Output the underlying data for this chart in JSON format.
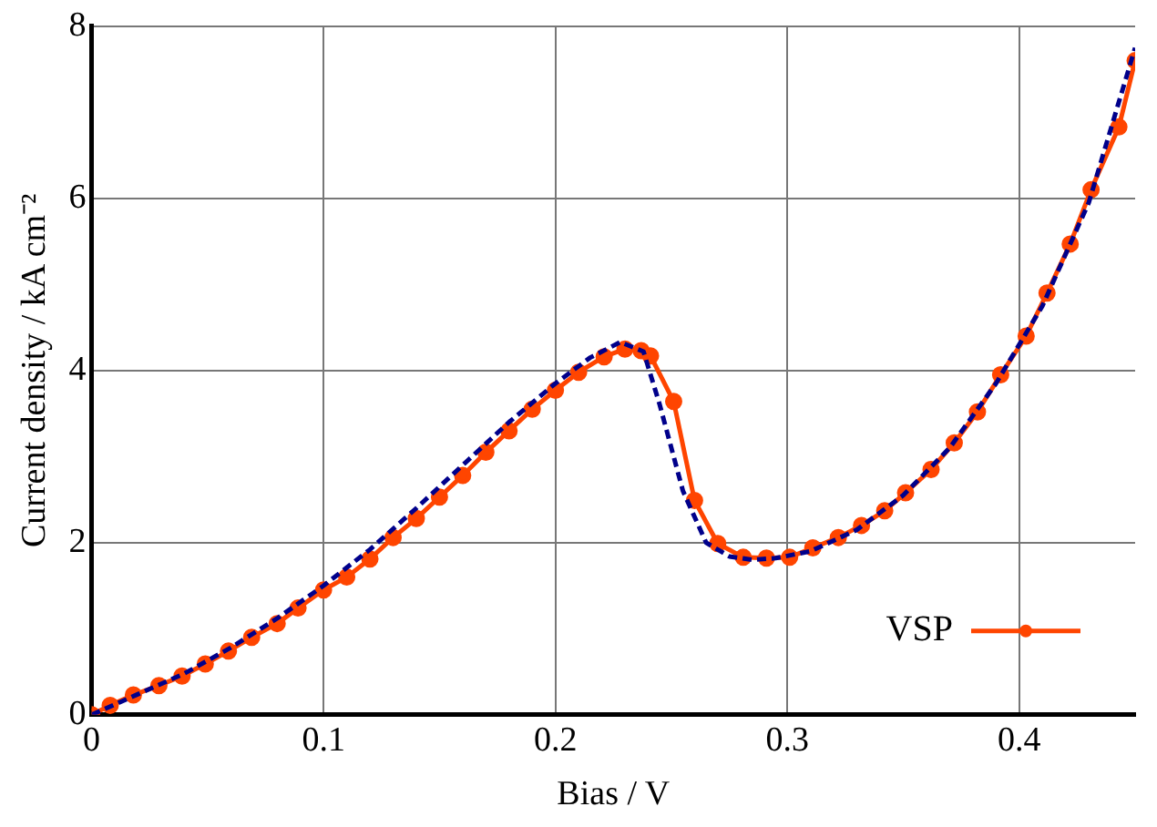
{
  "chart_data": {
    "type": "line",
    "xlabel": "Bias / V",
    "ylabel": "Current density / kA cm⁻²",
    "xlim": [
      0,
      0.45
    ],
    "ylim": [
      0,
      8
    ],
    "xticks": [
      0,
      0.1,
      0.2,
      0.3,
      0.4
    ],
    "yticks": [
      0,
      2,
      4,
      6,
      8
    ],
    "grid": true,
    "legend": "bottom right",
    "series": [
      {
        "name": "VSP",
        "color": "#ff4500",
        "marker": "circle",
        "line_style": "solid",
        "x": [
          0,
          0.008,
          0.018,
          0.029,
          0.039,
          0.049,
          0.059,
          0.069,
          0.08,
          0.089,
          0.1,
          0.11,
          0.12,
          0.13,
          0.14,
          0.15,
          0.16,
          0.17,
          0.18,
          0.19,
          0.2,
          0.21,
          0.221,
          0.23,
          0.237,
          0.241,
          0.251,
          0.26,
          0.27,
          0.281,
          0.291,
          0.301,
          0.311,
          0.322,
          0.332,
          0.342,
          0.351,
          0.362,
          0.372,
          0.382,
          0.392,
          0.403,
          0.412,
          0.422,
          0.431,
          0.443,
          0.45
        ],
        "values": [
          0,
          0.11,
          0.23,
          0.34,
          0.45,
          0.59,
          0.74,
          0.9,
          1.06,
          1.24,
          1.45,
          1.6,
          1.81,
          2.06,
          2.28,
          2.53,
          2.78,
          3.05,
          3.3,
          3.55,
          3.77,
          3.98,
          4.16,
          4.25,
          4.23,
          4.17,
          3.64,
          2.49,
          1.99,
          1.83,
          1.82,
          1.83,
          1.94,
          2.06,
          2.2,
          2.37,
          2.58,
          2.85,
          3.16,
          3.52,
          3.95,
          4.4,
          4.9,
          5.47,
          6.1,
          6.83,
          7.6
        ]
      },
      {
        "color": "#00008b",
        "marker": "none",
        "line_style": "dashed",
        "x": [
          0,
          0.02,
          0.04,
          0.06,
          0.08,
          0.1,
          0.12,
          0.14,
          0.16,
          0.18,
          0.2,
          0.215,
          0.228,
          0.238,
          0.245,
          0.255,
          0.265,
          0.275,
          0.285,
          0.295,
          0.31,
          0.33,
          0.35,
          0.37,
          0.39,
          0.41,
          0.43,
          0.45
        ],
        "values": [
          0,
          0.24,
          0.48,
          0.78,
          1.12,
          1.5,
          1.92,
          2.4,
          2.9,
          3.4,
          3.85,
          4.15,
          4.33,
          4.22,
          3.6,
          2.6,
          2.0,
          1.84,
          1.8,
          1.82,
          1.9,
          2.15,
          2.55,
          3.1,
          3.85,
          4.75,
          5.95,
          7.75
        ]
      }
    ]
  }
}
